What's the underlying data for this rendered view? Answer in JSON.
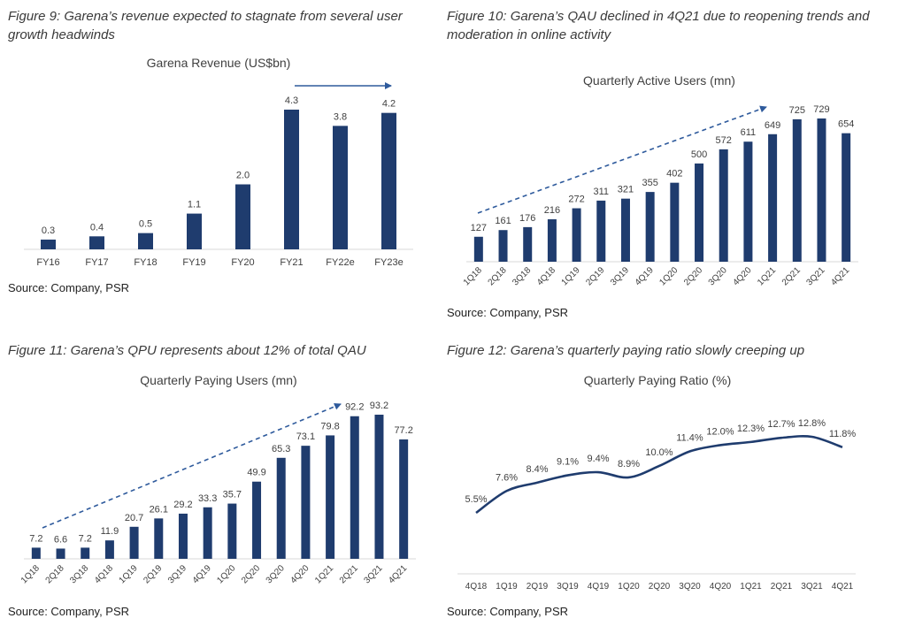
{
  "figures": [
    {
      "caption": "Figure 9: Garena’s revenue expected to stagnate from several user growth headwinds",
      "source": "Source: Company, PSR"
    },
    {
      "caption": "Figure 10: Garena’s QAU declined in 4Q21 due to reopening trends and moderation in online activity",
      "source": "Source: Company, PSR"
    },
    {
      "caption": "Figure 11: Garena’s QPU represents about 12% of total QAU",
      "source": "Source: Company, PSR"
    },
    {
      "caption": "Figure 12: Garena’s quarterly paying ratio slowly creeping up",
      "source": "Source: Company, PSR"
    }
  ],
  "colors": {
    "bar": "#1f3c6e",
    "arrow": "#2e5a9c",
    "axis": "#d9d9d9"
  },
  "chart_data": [
    {
      "type": "bar",
      "title": "Garena Revenue (US$bn)",
      "categories": [
        "FY16",
        "FY17",
        "FY18",
        "FY19",
        "FY20",
        "FY21",
        "FY22e",
        "FY23e"
      ],
      "values": [
        0.3,
        0.4,
        0.5,
        1.1,
        2.0,
        4.3,
        3.8,
        4.2
      ],
      "labels": [
        "0.3",
        "0.4",
        "0.5",
        "1.1",
        "2.0",
        "4.3",
        "3.8",
        "4.2"
      ],
      "ylim": [
        0,
        4.3
      ],
      "annotation": "arrow",
      "grid": false
    },
    {
      "type": "bar",
      "title": "Quarterly Active Users (mn)",
      "categories": [
        "1Q18",
        "2Q18",
        "3Q18",
        "4Q18",
        "1Q19",
        "2Q19",
        "3Q19",
        "4Q19",
        "1Q20",
        "2Q20",
        "3Q20",
        "4Q20",
        "1Q21",
        "2Q21",
        "3Q21",
        "4Q21"
      ],
      "values": [
        127,
        161,
        176,
        216,
        272,
        311,
        321,
        355,
        402,
        500,
        572,
        611,
        649,
        725,
        729,
        654
      ],
      "labels": [
        "127",
        "161",
        "176",
        "216",
        "272",
        "311",
        "321",
        "355",
        "402",
        "500",
        "572",
        "611",
        "649",
        "725",
        "729",
        "654"
      ],
      "ylim": [
        0,
        729
      ],
      "annotation": "dashed-arrow",
      "grid": false
    },
    {
      "type": "bar",
      "title": "Quarterly Paying Users (mn)",
      "categories": [
        "1Q18",
        "2Q18",
        "3Q18",
        "4Q18",
        "1Q19",
        "2Q19",
        "3Q19",
        "4Q19",
        "1Q20",
        "2Q20",
        "3Q20",
        "4Q20",
        "1Q21",
        "2Q21",
        "3Q21",
        "4Q21"
      ],
      "values": [
        7.2,
        6.6,
        7.2,
        11.9,
        20.7,
        26.1,
        29.2,
        33.3,
        35.7,
        49.9,
        65.3,
        73.1,
        79.8,
        92.2,
        93.2,
        77.2
      ],
      "labels": [
        "7.2",
        "6.6",
        "7.2",
        "11.9",
        "20.7",
        "26.1",
        "29.2",
        "33.3",
        "35.7",
        "49.9",
        "65.3",
        "73.1",
        "79.8",
        "92.2",
        "93.2",
        "77.2"
      ],
      "ylim": [
        0,
        93.2
      ],
      "annotation": "dashed-arrow",
      "grid": false
    },
    {
      "type": "line",
      "title": "Quarterly Paying Ratio (%)",
      "categories": [
        "4Q18",
        "1Q19",
        "2Q19",
        "3Q19",
        "4Q19",
        "1Q20",
        "2Q20",
        "3Q20",
        "4Q20",
        "1Q21",
        "2Q21",
        "3Q21",
        "4Q21"
      ],
      "values": [
        5.5,
        7.6,
        8.4,
        9.1,
        9.4,
        8.9,
        10.0,
        11.4,
        12.0,
        12.3,
        12.7,
        12.8,
        11.8
      ],
      "labels": [
        "5.5%",
        "7.6%",
        "8.4%",
        "9.1%",
        "9.4%",
        "8.9%",
        "10.0%",
        "11.4%",
        "12.0%",
        "12.3%",
        "12.7%",
        "12.8%",
        "11.8%"
      ],
      "ylim": [
        5.5,
        12.8
      ],
      "grid": false
    }
  ]
}
